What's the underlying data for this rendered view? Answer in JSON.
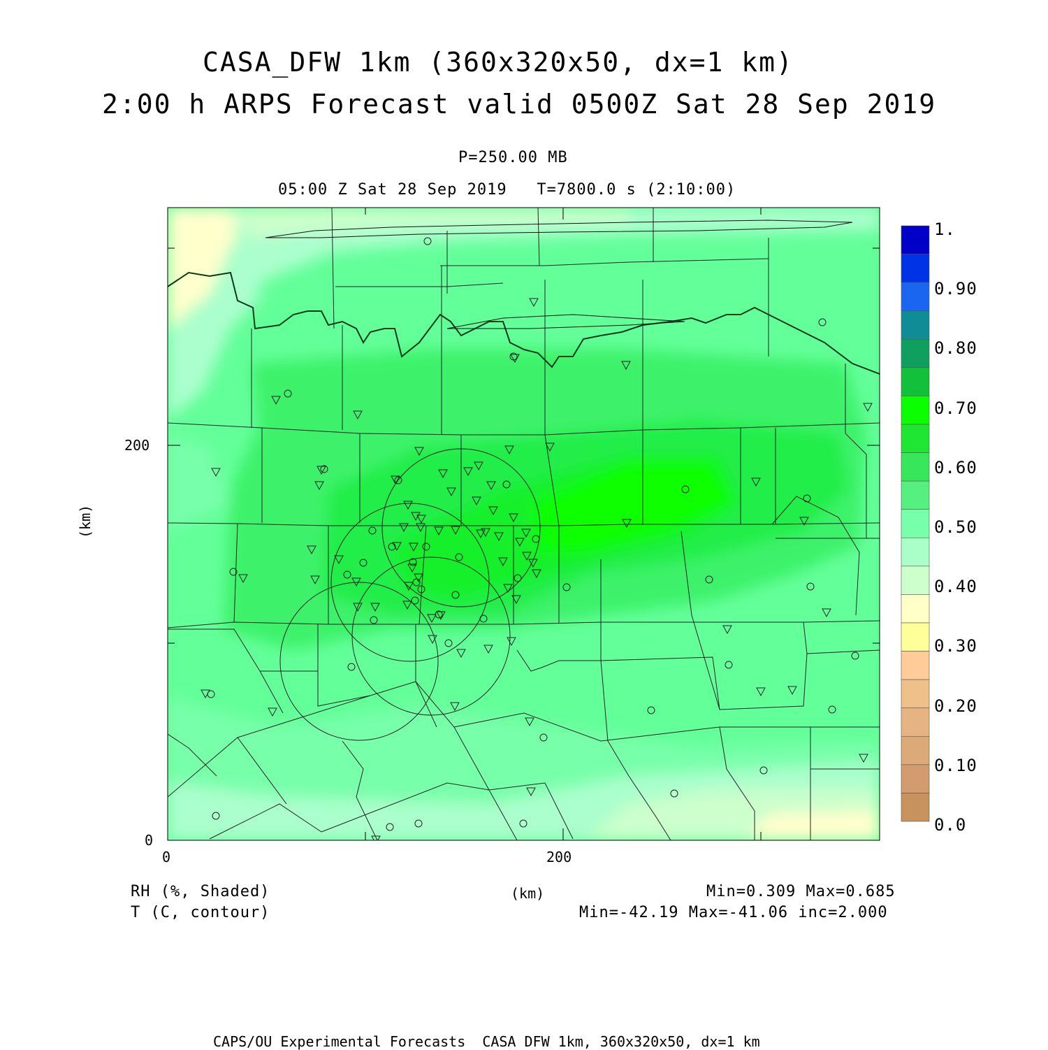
{
  "header": {
    "title_line1": "CASA_DFW 1km (360x320x50, dx=1 km)",
    "title_line2": "2:00 h ARPS Forecast valid 0500Z Sat 28 Sep 2019",
    "level": "P=250.00 MB",
    "time_line": "05:00 Z Sat 28 Sep 2019   T=7800.0 s (2:10:00)"
  },
  "axes": {
    "x_unit": "(km)",
    "y_unit": "(km)",
    "x_ticks": [
      "0",
      "200"
    ],
    "y_ticks": [
      "0",
      "200"
    ]
  },
  "colorbar": {
    "labels": [
      "1.",
      "0.90",
      "0.80",
      "0.70",
      "0.60",
      "0.50",
      "0.40",
      "0.30",
      "0.20",
      "0.10",
      "0.0"
    ],
    "colors": [
      "#0000c8",
      "#0033e6",
      "#1a66f0",
      "#108c96",
      "#0fa060",
      "#12c03c",
      "#0aff00",
      "#1ee632",
      "#37e65a",
      "#55f080",
      "#78ffaa",
      "#aaffc8",
      "#ccffcc",
      "#ffffc8",
      "#ffff99",
      "#ffcc99",
      "#f0c08a",
      "#e6b482",
      "#dcaa78",
      "#d29c6e",
      "#c8925f"
    ]
  },
  "legend": {
    "field1": "RH (%, Shaded)",
    "field2": "T (C, contour)",
    "stats1": "Min=0.309 Max=0.685",
    "stats2": "Min=-42.19 Max=-41.06 inc=2.000"
  },
  "footer": "CAPS/OU Experimental Forecasts  CASA DFW 1km, 360x320x50, dx=1 km"
}
